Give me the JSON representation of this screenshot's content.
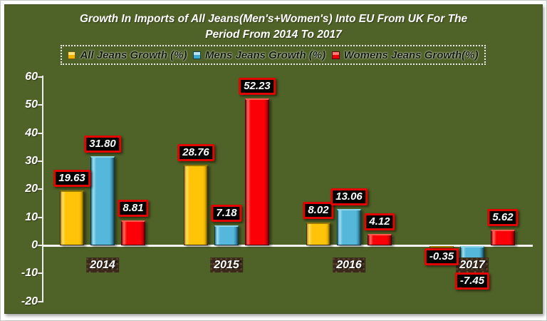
{
  "title": {
    "line1": "Growth In Imports of All Jeans(Men's+Women's) Into EU From UK For The",
    "line2": "Period From 2014 To 2017"
  },
  "chart_data": {
    "type": "bar",
    "title": "Growth In Imports of All Jeans(Men's+Women's) Into EU From UK For The Period From 2014 To 2017",
    "categories": [
      "2014",
      "2015",
      "2016",
      "2017"
    ],
    "series": [
      {
        "name": "All Jeans Growth (%)",
        "color": "#FFC408",
        "values": [
          19.63,
          28.76,
          8.02,
          -0.35
        ]
      },
      {
        "name": "Mens Jeans Growth (%)",
        "color": "#55B7D9",
        "values": [
          31.8,
          7.18,
          13.06,
          -7.45
        ]
      },
      {
        "name": "Womens Jeans Growth(%)",
        "color": "#FB0007",
        "values": [
          8.81,
          52.23,
          4.12,
          5.62
        ]
      }
    ],
    "ylim": [
      -20,
      60
    ],
    "yticks": [
      60,
      50,
      40,
      30,
      20,
      10,
      0,
      -10,
      -20
    ],
    "value_label_decimals": 2,
    "grid": false,
    "legend_position": "top",
    "background_color": "#4F6227",
    "axis_color": "#EDEDED",
    "value_label_style": {
      "bg": "#000000",
      "border": "#E10600",
      "text": "#FFFFFF"
    },
    "category_label_style": {
      "bg": "#3A2A1C",
      "text": "#FFFFFF"
    }
  }
}
